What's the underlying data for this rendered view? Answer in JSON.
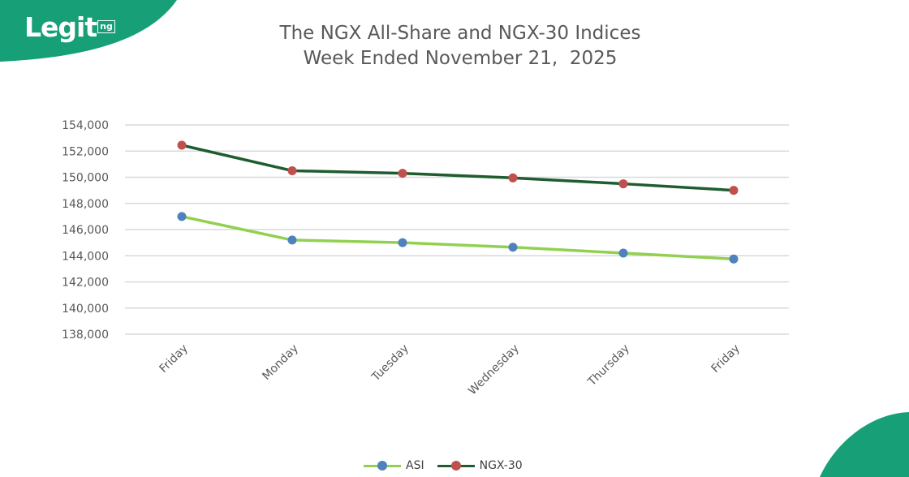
{
  "brand": {
    "logo_word": "Legit",
    "logo_tld": "ng",
    "brand_color": "#17a078"
  },
  "chart_data": {
    "type": "line",
    "title_line1": "The NGX All-Share and NGX-30 Indices",
    "title_line2": "Week Ended November 21,  2025",
    "categories": [
      "Friday",
      "Monday",
      "Tuesday",
      "Wednesday",
      "Thursday",
      "Friday"
    ],
    "series": [
      {
        "name": "ASI",
        "values": [
          147000,
          145200,
          145000,
          144650,
          144200,
          143750
        ],
        "color": "#92d050",
        "marker_color": "#4f81bd"
      },
      {
        "name": "NGX-30",
        "values": [
          152450,
          150500,
          150300,
          149950,
          149500,
          149000
        ],
        "color": "#1f5c2f",
        "marker_color": "#c0504d"
      }
    ],
    "ylim": [
      138000,
      154000
    ],
    "y_ticks": [
      "138,000",
      "140,000",
      "142,000",
      "144,000",
      "146,000",
      "148,000",
      "150,000",
      "152,000",
      "154,000"
    ],
    "y_tick_values": [
      138000,
      140000,
      142000,
      144000,
      146000,
      148000,
      150000,
      152000,
      154000
    ],
    "grid": true,
    "legend_position": "bottom",
    "gridline_color": "#d9d9d9",
    "label_color": "#595959"
  }
}
